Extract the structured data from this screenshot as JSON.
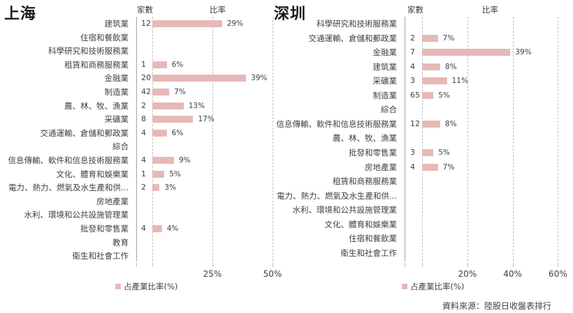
{
  "chart_data": [
    {
      "type": "bar",
      "orientation": "horizontal",
      "title": "上海",
      "count_header": "家數",
      "ratio_header": "比率",
      "categories": [
        "建筑業",
        "住宿和餐飲業",
        "科學研究和技術服務業",
        "租賃和商務服務業",
        "金融業",
        "制造業",
        "農、林、牧、漁業",
        "采礦業",
        "交通運輸、倉儲和郵政業",
        "綜合",
        "信息傳輸、軟件和信息技術服務業",
        "文化、體育和娛樂業",
        "電力、熱力、燃氣及水生產和供...",
        "房地產業",
        "水利、環境和公共設施管理業",
        "批發和零售業",
        "教育",
        "衛生和社會工作"
      ],
      "counts": [
        12,
        null,
        null,
        1,
        20,
        42,
        2,
        8,
        4,
        null,
        4,
        1,
        2,
        null,
        null,
        4,
        null,
        null
      ],
      "series": [
        {
          "name": "占產業比率(%)",
          "values": [
            29,
            null,
            null,
            6,
            39,
            7,
            13,
            17,
            6,
            null,
            9,
            5,
            3,
            null,
            null,
            4,
            null,
            null
          ]
        }
      ],
      "xticks": [
        "25%",
        "50%"
      ],
      "xlim": [
        0,
        50
      ],
      "grid": true,
      "legend_position": "bottom-left"
    },
    {
      "type": "bar",
      "orientation": "horizontal",
      "title": "深圳",
      "count_header": "家數",
      "ratio_header": "比率",
      "categories": [
        "科學研究和技術服務業",
        "交通運輸、倉儲和郵政業",
        "金融業",
        "建筑業",
        "采礦業",
        "制造業",
        "綜合",
        "信息傳輸、軟件和信息技術服務業",
        "農、林、牧、漁業",
        "批發和零售業",
        "房地產業",
        "租賃和商務服務業",
        "電力、熱力、燃氣及水生產和供...",
        "水利、環境和公共設施管理業",
        "文化、體育和娛樂業",
        "住宿和餐飲業",
        "衛生和社會工作"
      ],
      "counts": [
        null,
        2,
        7,
        4,
        3,
        65,
        null,
        12,
        null,
        3,
        4,
        null,
        null,
        null,
        null,
        null,
        null
      ],
      "series": [
        {
          "name": "占產業比率(%)",
          "values": [
            null,
            7,
            39,
            8,
            11,
            5,
            null,
            8,
            null,
            5,
            7,
            null,
            null,
            null,
            null,
            null,
            null
          ]
        }
      ],
      "xticks": [
        "20%",
        "40%",
        "60%"
      ],
      "xlim": [
        0,
        60
      ],
      "grid": true,
      "legend_position": "bottom-left"
    }
  ],
  "style": {
    "bar_color": "#e6b9b8"
  },
  "source_note": "資料來源：陸股日收盤表排行"
}
